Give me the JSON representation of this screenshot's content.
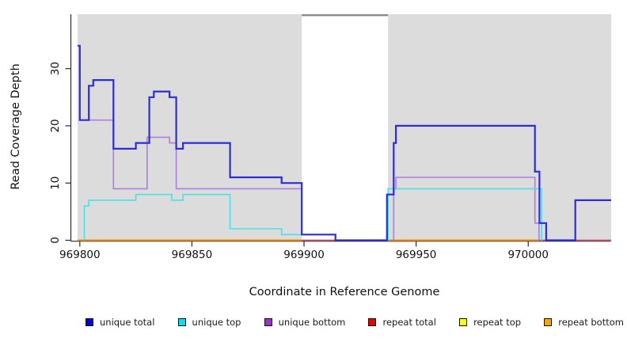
{
  "chart_data": {
    "type": "line",
    "subtype": "step",
    "title": "",
    "xlabel": "Coordinate in Reference Genome",
    "ylabel": "Read Coverage Depth",
    "xlim": [
      969799,
      970037
    ],
    "ylim": [
      0,
      39.5
    ],
    "x_ticks": [
      969800,
      969850,
      969900,
      969950,
      970000
    ],
    "x_tick_labels": [
      "969800",
      "969850",
      "969900",
      "969950",
      "970000"
    ],
    "y_ticks": [
      0,
      10,
      20,
      30
    ],
    "y_tick_labels": [
      "0",
      "10",
      "20",
      "30"
    ],
    "grid": false,
    "plot_background": "#dcdcdc",
    "axis_color": "#2a2a2a",
    "masked_region": {
      "x0": 969899,
      "x1": 969937.5,
      "fill": "#ffffff",
      "top_border_color": "#8a8a8a"
    },
    "legend_position": "bottom",
    "series": [
      {
        "name": "unique total",
        "legend_color": "#0000e6",
        "line_color": "#2c2cd8",
        "line_width": 2.2,
        "draw_order": 5,
        "steps": [
          [
            969799,
            34
          ],
          [
            969800,
            21
          ],
          [
            969804,
            27
          ],
          [
            969806,
            28
          ],
          [
            969815,
            16
          ],
          [
            969825,
            17
          ],
          [
            969831,
            25
          ],
          [
            969833,
            26
          ],
          [
            969840,
            25
          ],
          [
            969843,
            16
          ],
          [
            969846,
            17
          ],
          [
            969867,
            11
          ],
          [
            969890,
            10
          ],
          [
            969899,
            1
          ],
          [
            969914,
            0
          ],
          [
            969937,
            8
          ],
          [
            969940,
            17
          ],
          [
            969941,
            20
          ],
          [
            970003,
            12
          ],
          [
            970005,
            3
          ],
          [
            970008,
            0
          ],
          [
            970021,
            7
          ]
        ]
      },
      {
        "name": "unique top",
        "legend_color": "#00e0ee",
        "line_color": "#4ae0e8",
        "line_width": 1.6,
        "draw_order": 4,
        "steps": [
          [
            969801.8,
            0
          ],
          [
            969802,
            6
          ],
          [
            969804,
            7
          ],
          [
            969825,
            8
          ],
          [
            969841,
            7
          ],
          [
            969846,
            8
          ],
          [
            969867,
            2
          ],
          [
            969890,
            1
          ],
          [
            969899,
            null
          ],
          [
            969937.3,
            0
          ],
          [
            969937.5,
            9
          ],
          [
            970006,
            0
          ],
          [
            970006.3,
            null
          ]
        ]
      },
      {
        "name": "unique bottom",
        "legend_color": "#9932cc",
        "line_color": "#b07ce0",
        "line_width": 1.6,
        "draw_order": 3,
        "steps": [
          [
            969799,
            34
          ],
          [
            969800,
            21
          ],
          [
            969815,
            9
          ],
          [
            969830,
            18
          ],
          [
            969840,
            17
          ],
          [
            969843,
            9
          ],
          [
            969899,
            null
          ],
          [
            969939.8,
            0
          ],
          [
            969940,
            9
          ],
          [
            969941,
            11
          ],
          [
            970003,
            3
          ],
          [
            970004.8,
            0
          ],
          [
            970005,
            null
          ]
        ]
      },
      {
        "name": "repeat total",
        "legend_color": "#e80000",
        "line_color": "#d4536f",
        "line_width": 1.8,
        "draw_order": 1,
        "steps": [
          [
            969899,
            0
          ],
          [
            969937.5,
            null
          ],
          [
            970005,
            0
          ]
        ]
      },
      {
        "name": "repeat top",
        "legend_color": "#ffff00",
        "line_color": "#ffff00",
        "line_width": 1.6,
        "draw_order": 0,
        "steps": []
      },
      {
        "name": "repeat bottom",
        "legend_color": "#ffa500",
        "line_color": "#ff8c00",
        "line_width": 2,
        "draw_order": 2,
        "steps": [
          [
            969799,
            0
          ],
          [
            969899,
            null
          ],
          [
            969937.5,
            0
          ],
          [
            970005,
            null
          ]
        ]
      }
    ],
    "legend": {
      "entries": [
        {
          "label": "unique total",
          "color": "#0000e6"
        },
        {
          "label": "unique top",
          "color": "#00e0ee"
        },
        {
          "label": "unique bottom",
          "color": "#9932cc"
        },
        {
          "label": "repeat total",
          "color": "#e80000"
        },
        {
          "label": "repeat top",
          "color": "#ffff00"
        },
        {
          "label": "repeat bottom",
          "color": "#ffa500"
        }
      ]
    }
  }
}
